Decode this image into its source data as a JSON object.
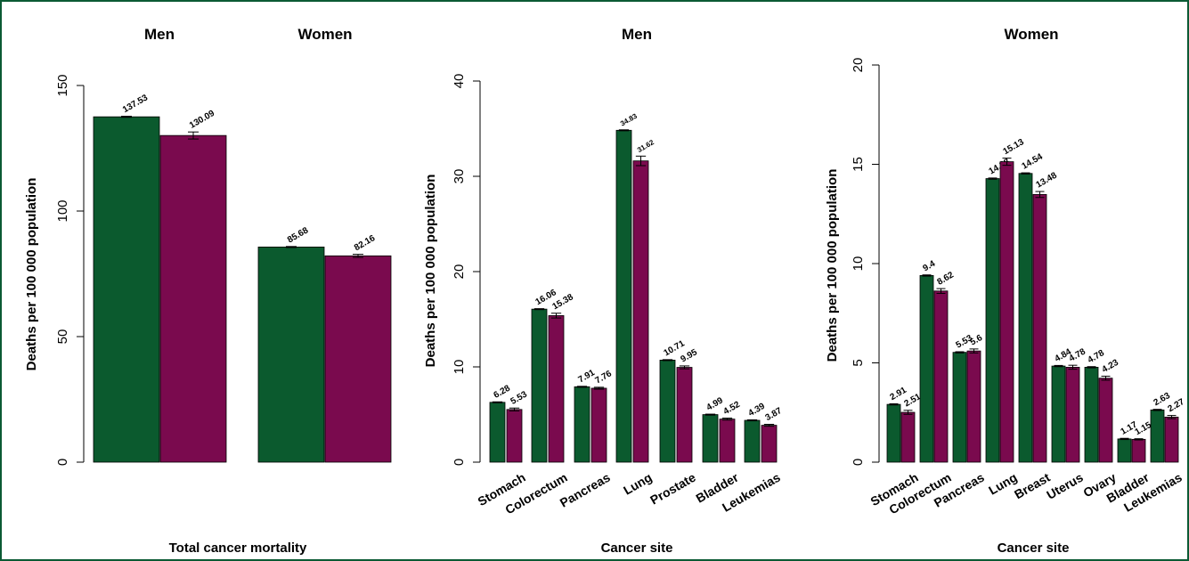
{
  "colors": {
    "men": "#0b5a2e",
    "women": "#7a0a4e",
    "frame": "#0b5a34"
  },
  "chart_data": [
    {
      "type": "bar",
      "group_labels": [
        "Men",
        "Women"
      ],
      "series": [
        {
          "values": [
            137.53,
            85.68
          ]
        },
        {
          "values": [
            130.09,
            82.16
          ]
        }
      ],
      "data_labels": [
        [
          "137.53",
          "85.68"
        ],
        [
          "130.09",
          "82.16"
        ]
      ],
      "errors": [
        [
          0.2,
          0.2
        ],
        [
          1.4,
          0.6
        ]
      ],
      "ylabel": "Deaths per 100 000 population",
      "xlabel": "Total cancer mortality",
      "yticks": [
        "0",
        "50",
        "100",
        "150"
      ],
      "ylim": [
        0,
        150
      ]
    },
    {
      "type": "bar",
      "title": "Men",
      "categories": [
        "Stomach",
        "Colorectum",
        "Pancreas",
        "Lung",
        "Prostate",
        "Bladder",
        "Leukemias"
      ],
      "series": [
        {
          "values": [
            6.28,
            16.06,
            7.91,
            34.83,
            10.71,
            4.99,
            4.39
          ]
        },
        {
          "values": [
            5.53,
            15.38,
            7.76,
            31.62,
            9.95,
            4.52,
            3.87
          ]
        }
      ],
      "data_labels": [
        [
          "6.28",
          "16.06",
          "7.91",
          "34.83",
          "10.71",
          "4.99",
          "4.39"
        ],
        [
          "5.53",
          "15.38",
          "7.76",
          "31.62",
          "9.95",
          "4.52",
          "3.87"
        ]
      ],
      "errors": [
        [
          0.05,
          0.05,
          0.05,
          0.05,
          0.05,
          0.05,
          0.05
        ],
        [
          0.15,
          0.25,
          0.1,
          0.5,
          0.15,
          0.1,
          0.1
        ]
      ],
      "ylabel": "Deaths per 100 000 population",
      "xlabel": "Cancer site",
      "yticks": [
        "0",
        "10",
        "20",
        "30",
        "40"
      ],
      "ylim": [
        0,
        40
      ]
    },
    {
      "type": "bar",
      "title": "Women",
      "categories": [
        "Stomach",
        "Colorectum",
        "Pancreas",
        "Lung",
        "Breast",
        "Uterus",
        "Ovary",
        "Bladder",
        "Leukemias"
      ],
      "series": [
        {
          "values": [
            2.91,
            9.4,
            5.53,
            14.28,
            14.54,
            4.84,
            4.78,
            1.17,
            2.63
          ]
        },
        {
          "values": [
            2.51,
            8.62,
            5.6,
            15.13,
            13.48,
            4.78,
            4.23,
            1.15,
            2.27
          ]
        }
      ],
      "data_labels": [
        [
          "2.91",
          "9.4",
          "5.53",
          "14.28",
          "14.54",
          "4.84",
          "4.78",
          "1.17",
          "2.63"
        ],
        [
          "2.51",
          "8.62",
          "5.6",
          "15.13",
          "13.48",
          "4.78",
          "4.23",
          "1.15",
          "2.27"
        ]
      ],
      "errors": [
        [
          0.03,
          0.03,
          0.03,
          0.03,
          0.03,
          0.03,
          0.03,
          0.03,
          0.03
        ],
        [
          0.1,
          0.12,
          0.1,
          0.18,
          0.15,
          0.1,
          0.1,
          0.03,
          0.08
        ]
      ],
      "ylabel": "Deaths per 100 000 population",
      "xlabel": "Cancer site",
      "yticks": [
        "0",
        "5",
        "10",
        "15",
        "20"
      ],
      "ylim": [
        0,
        20
      ]
    }
  ]
}
